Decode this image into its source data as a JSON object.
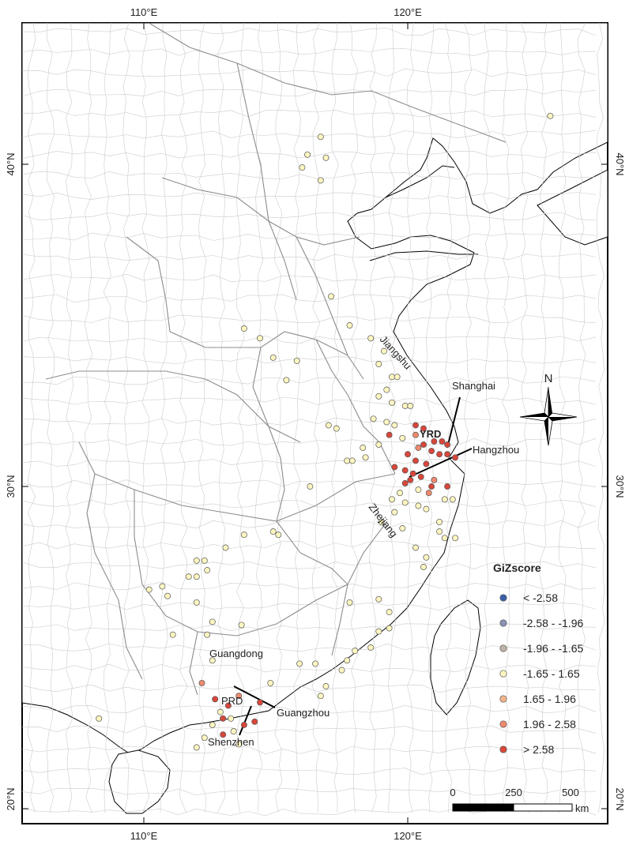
{
  "axes": {
    "top": [
      "110°E",
      "120°E"
    ],
    "bottom": [
      "110°E",
      "120°E"
    ],
    "left": [
      "40°N",
      "30°N",
      "20°N"
    ],
    "right": [
      "40°N",
      "30°N",
      "20°N"
    ]
  },
  "graticule": {
    "lon_ticks": [
      110,
      120
    ],
    "lat_ticks": [
      40,
      30,
      20
    ],
    "lon_range": [
      105.5,
      127.5
    ],
    "lat_range": [
      18.7,
      41.8
    ]
  },
  "labels": {
    "jiangshu": "Jiangshu",
    "zhejiang": "Zhejiang",
    "guangdong": "Guangdong",
    "shanghai": "Shanghai",
    "hangzhou": "Hangzhou",
    "yrd": "YRD",
    "prd": "PRD",
    "guangzhou": "Guangzhou",
    "shenzhen": "Shenzhen"
  },
  "north_arrow": {
    "label": "N"
  },
  "legend": {
    "title": "GiZscore",
    "classes": [
      {
        "label": "< -2.58",
        "color": "#3a5fa8"
      },
      {
        "label": "-2.58 - -1.96",
        "color": "#8a93b4"
      },
      {
        "label": "-1.96 - -1.65",
        "color": "#bdb3a6"
      },
      {
        "label": "-1.65 - 1.65",
        "color": "#fdf6c1"
      },
      {
        "label": "1.65 - 1.96",
        "color": "#f3b48b"
      },
      {
        "label": "1.96 - 2.58",
        "color": "#ed8a6e"
      },
      {
        "label": "> 2.58",
        "color": "#d8473a"
      }
    ]
  },
  "scale_bar": {
    "ticks": [
      "0",
      "250",
      "500"
    ],
    "unit": "km"
  },
  "colors": {
    "border": "#000000",
    "provincial": "#8c8c8c",
    "county": "#cccccc"
  },
  "points": [
    {
      "lon": 125.4,
      "lat": 41.5,
      "c": 3
    },
    {
      "lon": 116.7,
      "lat": 40.85,
      "c": 3
    },
    {
      "lon": 116.2,
      "lat": 40.3,
      "c": 3
    },
    {
      "lon": 116.9,
      "lat": 40.2,
      "c": 3
    },
    {
      "lon": 116.0,
      "lat": 39.9,
      "c": 3
    },
    {
      "lon": 116.7,
      "lat": 39.5,
      "c": 3
    },
    {
      "lon": 117.1,
      "lat": 35.9,
      "c": 3
    },
    {
      "lon": 117.8,
      "lat": 35.0,
      "c": 3
    },
    {
      "lon": 118.6,
      "lat": 34.6,
      "c": 3
    },
    {
      "lon": 119.1,
      "lat": 34.2,
      "c": 3
    },
    {
      "lon": 118.9,
      "lat": 33.8,
      "c": 3
    },
    {
      "lon": 119.4,
      "lat": 33.4,
      "c": 3
    },
    {
      "lon": 119.6,
      "lat": 33.4,
      "c": 3
    },
    {
      "lon": 119.2,
      "lat": 33.0,
      "c": 3
    },
    {
      "lon": 118.9,
      "lat": 32.8,
      "c": 3
    },
    {
      "lon": 119.4,
      "lat": 32.6,
      "c": 3
    },
    {
      "lon": 119.9,
      "lat": 32.5,
      "c": 3
    },
    {
      "lon": 120.1,
      "lat": 32.5,
      "c": 3
    },
    {
      "lon": 118.7,
      "lat": 32.1,
      "c": 3
    },
    {
      "lon": 119.2,
      "lat": 32.0,
      "c": 3
    },
    {
      "lon": 119.5,
      "lat": 31.9,
      "c": 3
    },
    {
      "lon": 119.8,
      "lat": 31.5,
      "c": 3
    },
    {
      "lon": 118.9,
      "lat": 31.3,
      "c": 3
    },
    {
      "lon": 118.3,
      "lat": 31.2,
      "c": 3
    },
    {
      "lon": 118.4,
      "lat": 30.9,
      "c": 3
    },
    {
      "lon": 113.8,
      "lat": 34.9,
      "c": 3
    },
    {
      "lon": 114.4,
      "lat": 34.6,
      "c": 3
    },
    {
      "lon": 114.9,
      "lat": 34.0,
      "c": 3
    },
    {
      "lon": 115.8,
      "lat": 33.9,
      "c": 3
    },
    {
      "lon": 115.4,
      "lat": 33.3,
      "c": 3
    },
    {
      "lon": 117.0,
      "lat": 31.9,
      "c": 3
    },
    {
      "lon": 117.3,
      "lat": 31.8,
      "c": 3
    },
    {
      "lon": 117.7,
      "lat": 30.8,
      "c": 3
    },
    {
      "lon": 117.9,
      "lat": 30.8,
      "c": 3
    },
    {
      "lon": 116.3,
      "lat": 30.0,
      "c": 3
    },
    {
      "lon": 119.3,
      "lat": 31.6,
      "c": 6
    },
    {
      "lon": 120.3,
      "lat": 31.9,
      "c": 6
    },
    {
      "lon": 120.6,
      "lat": 31.8,
      "c": 6
    },
    {
      "lon": 121.0,
      "lat": 31.4,
      "c": 6
    },
    {
      "lon": 121.3,
      "lat": 31.4,
      "c": 6
    },
    {
      "lon": 121.5,
      "lat": 31.3,
      "c": 6
    },
    {
      "lon": 120.6,
      "lat": 31.3,
      "c": 6
    },
    {
      "lon": 120.9,
      "lat": 31.1,
      "c": 6
    },
    {
      "lon": 121.2,
      "lat": 31.0,
      "c": 6
    },
    {
      "lon": 121.5,
      "lat": 31.0,
      "c": 6
    },
    {
      "lon": 121.8,
      "lat": 30.9,
      "c": 6
    },
    {
      "lon": 120.0,
      "lat": 31.0,
      "c": 6
    },
    {
      "lon": 120.3,
      "lat": 30.8,
      "c": 6
    },
    {
      "lon": 120.7,
      "lat": 30.7,
      "c": 6
    },
    {
      "lon": 119.5,
      "lat": 30.6,
      "c": 6
    },
    {
      "lon": 119.9,
      "lat": 30.5,
      "c": 6
    },
    {
      "lon": 120.2,
      "lat": 30.4,
      "c": 6
    },
    {
      "lon": 120.5,
      "lat": 30.3,
      "c": 6
    },
    {
      "lon": 120.1,
      "lat": 30.2,
      "c": 6
    },
    {
      "lon": 119.9,
      "lat": 30.1,
      "c": 6
    },
    {
      "lon": 120.9,
      "lat": 30.0,
      "c": 6
    },
    {
      "lon": 121.5,
      "lat": 30.0,
      "c": 6
    },
    {
      "lon": 120.3,
      "lat": 31.6,
      "c": 5
    },
    {
      "lon": 120.4,
      "lat": 31.2,
      "c": 5
    },
    {
      "lon": 121.0,
      "lat": 30.2,
      "c": 5
    },
    {
      "lon": 120.8,
      "lat": 29.8,
      "c": 5
    },
    {
      "lon": 119.7,
      "lat": 29.8,
      "c": 3
    },
    {
      "lon": 120.4,
      "lat": 29.9,
      "c": 3
    },
    {
      "lon": 119.4,
      "lat": 29.6,
      "c": 3
    },
    {
      "lon": 119.9,
      "lat": 29.5,
      "c": 3
    },
    {
      "lon": 120.4,
      "lat": 29.4,
      "c": 3
    },
    {
      "lon": 119.5,
      "lat": 29.2,
      "c": 3
    },
    {
      "lon": 120.7,
      "lat": 29.3,
      "c": 3
    },
    {
      "lon": 121.4,
      "lat": 29.6,
      "c": 3
    },
    {
      "lon": 121.7,
      "lat": 29.6,
      "c": 3
    },
    {
      "lon": 119.8,
      "lat": 28.7,
      "c": 3
    },
    {
      "lon": 119.0,
      "lat": 28.9,
      "c": 3
    },
    {
      "lon": 121.2,
      "lat": 28.9,
      "c": 3
    },
    {
      "lon": 121.2,
      "lat": 28.6,
      "c": 3
    },
    {
      "lon": 121.4,
      "lat": 28.4,
      "c": 3
    },
    {
      "lon": 121.8,
      "lat": 28.4,
      "c": 3
    },
    {
      "lon": 120.3,
      "lat": 28.1,
      "c": 3
    },
    {
      "lon": 120.7,
      "lat": 27.8,
      "c": 3
    },
    {
      "lon": 120.6,
      "lat": 27.5,
      "c": 3
    },
    {
      "lon": 114.9,
      "lat": 28.6,
      "c": 3
    },
    {
      "lon": 115.1,
      "lat": 28.5,
      "c": 3
    },
    {
      "lon": 113.8,
      "lat": 28.5,
      "c": 3
    },
    {
      "lon": 113.1,
      "lat": 28.1,
      "c": 3
    },
    {
      "lon": 112.0,
      "lat": 27.7,
      "c": 3
    },
    {
      "lon": 112.3,
      "lat": 27.7,
      "c": 3
    },
    {
      "lon": 112.4,
      "lat": 27.4,
      "c": 3
    },
    {
      "lon": 111.7,
      "lat": 27.2,
      "c": 3
    },
    {
      "lon": 112.0,
      "lat": 27.2,
      "c": 3
    },
    {
      "lon": 110.2,
      "lat": 26.8,
      "c": 3
    },
    {
      "lon": 110.7,
      "lat": 26.9,
      "c": 3
    },
    {
      "lon": 110.9,
      "lat": 26.6,
      "c": 3
    },
    {
      "lon": 112.0,
      "lat": 26.4,
      "c": 3
    },
    {
      "lon": 112.6,
      "lat": 25.8,
      "c": 3
    },
    {
      "lon": 112.4,
      "lat": 25.4,
      "c": 3
    },
    {
      "lon": 111.1,
      "lat": 25.4,
      "c": 3
    },
    {
      "lon": 113.7,
      "lat": 25.7,
      "c": 3
    },
    {
      "lon": 112.6,
      "lat": 24.6,
      "c": 3
    },
    {
      "lon": 117.8,
      "lat": 26.4,
      "c": 3
    },
    {
      "lon": 118.9,
      "lat": 26.5,
      "c": 3
    },
    {
      "lon": 119.3,
      "lat": 26.1,
      "c": 3
    },
    {
      "lon": 119.3,
      "lat": 25.6,
      "c": 3
    },
    {
      "lon": 118.9,
      "lat": 25.5,
      "c": 3
    },
    {
      "lon": 118.6,
      "lat": 25.0,
      "c": 3
    },
    {
      "lon": 118.0,
      "lat": 24.9,
      "c": 3
    },
    {
      "lon": 117.7,
      "lat": 24.6,
      "c": 3
    },
    {
      "lon": 117.5,
      "lat": 24.3,
      "c": 3
    },
    {
      "lon": 116.5,
      "lat": 24.5,
      "c": 3
    },
    {
      "lon": 116.9,
      "lat": 23.8,
      "c": 3
    },
    {
      "lon": 116.7,
      "lat": 23.5,
      "c": 3
    },
    {
      "lon": 115.9,
      "lat": 24.5,
      "c": 3
    },
    {
      "lon": 114.8,
      "lat": 23.9,
      "c": 3
    },
    {
      "lon": 108.3,
      "lat": 22.8,
      "c": 3
    },
    {
      "lon": 112.9,
      "lat": 23.0,
      "c": 3
    },
    {
      "lon": 112.6,
      "lat": 22.6,
      "c": 3
    },
    {
      "lon": 112.3,
      "lat": 22.2,
      "c": 3
    },
    {
      "lon": 112.0,
      "lat": 21.9,
      "c": 3
    },
    {
      "lon": 113.4,
      "lat": 22.4,
      "c": 3
    },
    {
      "lon": 113.6,
      "lat": 22.0,
      "c": 3
    },
    {
      "lon": 113.3,
      "lat": 22.8,
      "c": 3
    },
    {
      "lon": 112.2,
      "lat": 23.9,
      "c": 5
    },
    {
      "lon": 113.6,
      "lat": 23.5,
      "c": 5
    },
    {
      "lon": 112.7,
      "lat": 23.4,
      "c": 6
    },
    {
      "lon": 113.2,
      "lat": 23.2,
      "c": 6
    },
    {
      "lon": 114.4,
      "lat": 23.3,
      "c": 6
    },
    {
      "lon": 113.0,
      "lat": 22.8,
      "c": 6
    },
    {
      "lon": 113.8,
      "lat": 22.6,
      "c": 6
    },
    {
      "lon": 114.2,
      "lat": 22.7,
      "c": 6
    },
    {
      "lon": 113.0,
      "lat": 22.3,
      "c": 6
    }
  ]
}
